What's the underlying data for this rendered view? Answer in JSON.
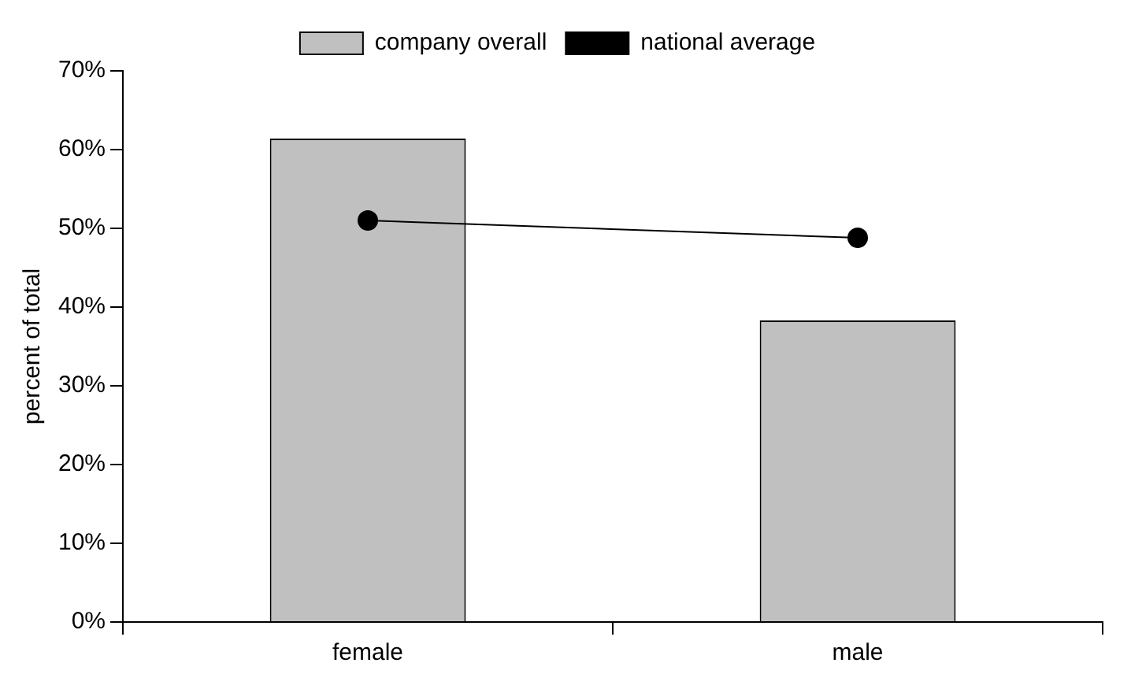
{
  "chart_data": {
    "type": "bar",
    "ylabel": "percent of total",
    "categories": [
      "female",
      "male"
    ],
    "series": [
      {
        "name": "company overall",
        "color": "#c0c0c0",
        "values": [
          61.4,
          38.3
        ]
      },
      {
        "name": "national average",
        "type": "line",
        "color": "#000000",
        "values": [
          51.0,
          48.8
        ]
      }
    ],
    "ylim": [
      0,
      70
    ],
    "yticks": [
      {
        "value": 0,
        "label": "0%"
      },
      {
        "value": 10,
        "label": "10%"
      },
      {
        "value": 20,
        "label": "20%"
      },
      {
        "value": 30,
        "label": "30%"
      },
      {
        "value": 40,
        "label": "40%"
      },
      {
        "value": 50,
        "label": "50%"
      },
      {
        "value": 60,
        "label": "60%"
      },
      {
        "value": 70,
        "label": "70%"
      }
    ],
    "grid": false,
    "legend": "top",
    "marker": "circle",
    "line_style": "solid"
  }
}
